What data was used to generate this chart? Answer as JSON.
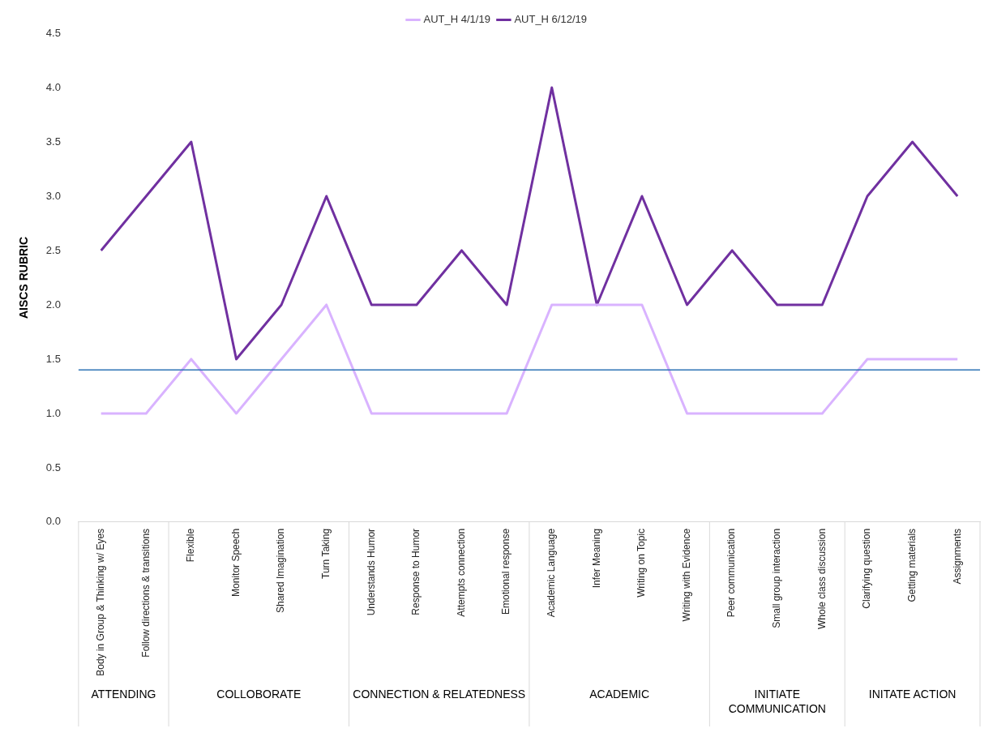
{
  "chart_data": {
    "type": "line",
    "categories": [
      "Body in Group & Thinking w/ Eyes",
      "Follow directions & transitions",
      "Flexible",
      "Monitor Speech",
      "Shared Imagination",
      "Turn Taking",
      "Understands Humor",
      "Response to Humor",
      "Attempts connection",
      "Emotional response",
      "Academic Language",
      "Infer Meaning",
      "Writing on Topic",
      "Writing with Evidence",
      "Peer communication",
      "Small group interaction",
      "Whole class discussion",
      "Clarifying question",
      "Getting materials",
      "Assignments"
    ],
    "series": [
      {
        "name": "AUT_H 4/1/19",
        "color": "#d9b3ff",
        "values": [
          1,
          1,
          1.5,
          1,
          1.5,
          2,
          1,
          1,
          1,
          1,
          2,
          2,
          2,
          1,
          1,
          1,
          1,
          1.5,
          1.5,
          1.5
        ]
      },
      {
        "name": "AUT_H 6/12/19",
        "color": "#7030a0",
        "values": [
          2.5,
          3,
          3.5,
          1.5,
          2,
          3,
          2,
          2,
          2.5,
          2,
          4,
          2,
          3,
          2,
          2.5,
          2,
          2,
          3,
          3.5,
          3
        ]
      }
    ],
    "ylabel": "AISCS RUBRIC",
    "ylim": [
      0,
      4.5
    ],
    "yticks": [
      {
        "value": 0,
        "label": "0.0"
      },
      {
        "value": 0.5,
        "label": "0.5"
      },
      {
        "value": 1,
        "label": "1.0"
      },
      {
        "value": 1.5,
        "label": "1.5"
      },
      {
        "value": 2,
        "label": "2.0"
      },
      {
        "value": 2.5,
        "label": "2.5"
      },
      {
        "value": 3,
        "label": "3.0"
      },
      {
        "value": 3.5,
        "label": "3.5"
      },
      {
        "value": 4,
        "label": "4.0"
      },
      {
        "value": 4.5,
        "label": "4.5"
      }
    ],
    "ref_lines": [
      {
        "axis": "y",
        "value": 1.4,
        "color": "#2e75b6"
      }
    ],
    "annotations": [
      "ATTENDING",
      "COLLOBORATE",
      "CONNECTION & RELATEDNESS",
      "ACADEMIC",
      "INITIATE COMMUNICATION",
      "INITATE ACTION"
    ],
    "grid": false,
    "legend": "top",
    "marker": "none",
    "line_style": "solid"
  }
}
